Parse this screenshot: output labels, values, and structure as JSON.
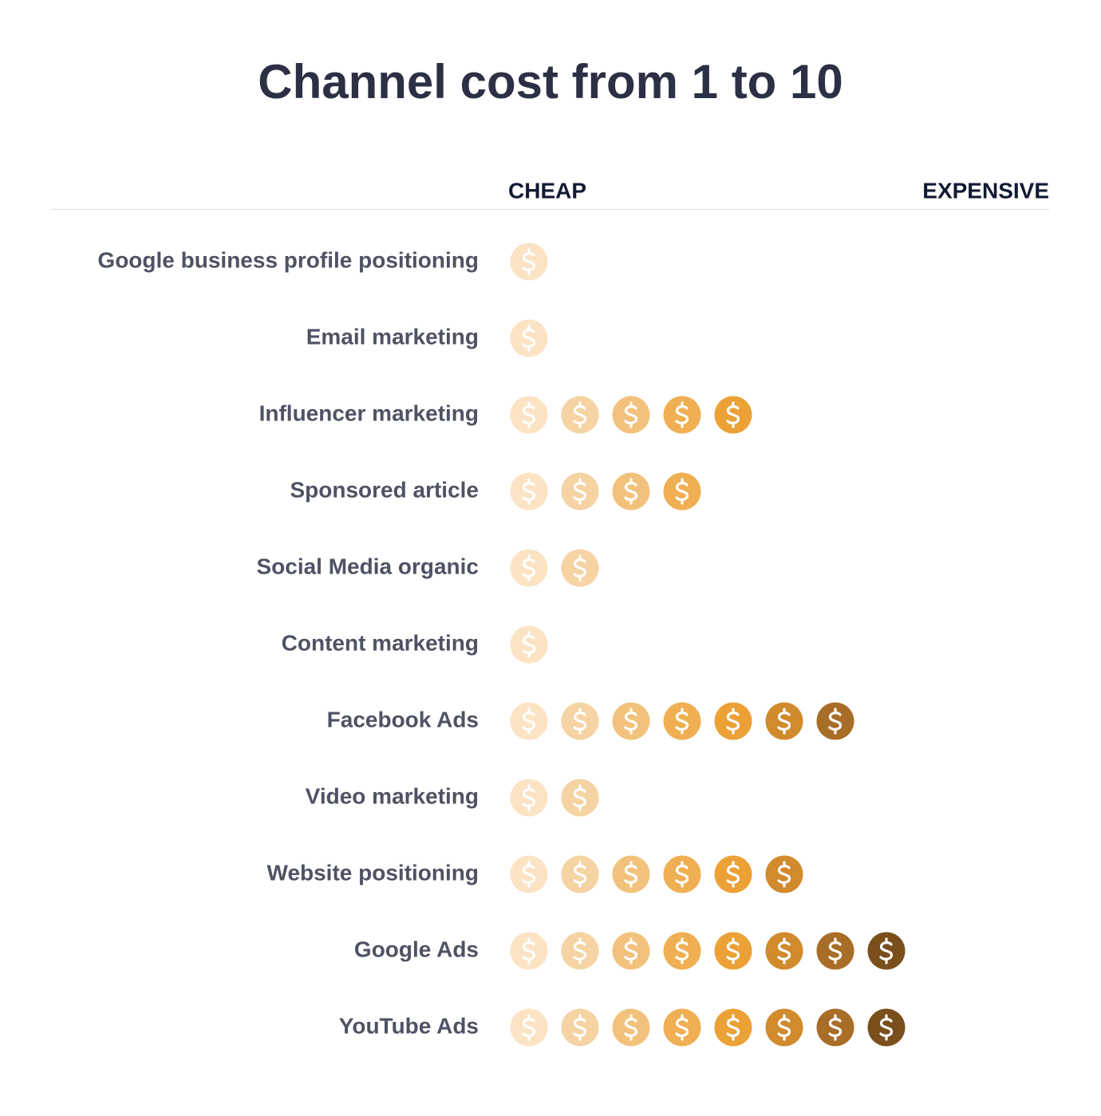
{
  "chart_data": {
    "type": "pictograph",
    "title": "Channel cost from 1 to 10",
    "scale_labels": [
      "CHEAP",
      "EXPENSIVE"
    ],
    "categories": [
      "Google business profile positioning",
      "Email marketing",
      "Influencer marketing",
      "Sponsored article",
      "Social Media organic",
      "Content marketing",
      "Facebook Ads",
      "Video marketing",
      "Website positioning",
      "Google Ads",
      "YouTube Ads"
    ],
    "values": [
      1,
      1,
      5,
      4,
      2,
      1,
      7,
      2,
      6,
      8,
      8
    ],
    "colors": [
      "#fbe3c4",
      "#f5d3a3",
      "#f2c27c",
      "#efaf52",
      "#eca136",
      "#d18a2c",
      "#a86d27",
      "#7a4f1c"
    ]
  }
}
